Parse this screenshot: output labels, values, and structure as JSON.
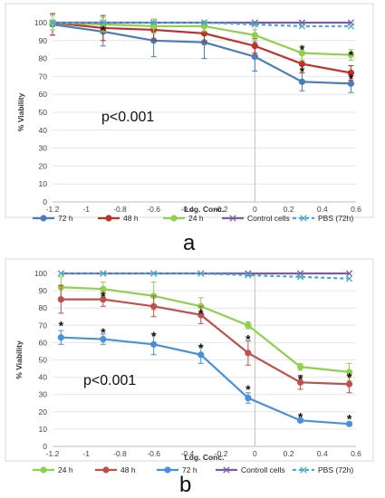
{
  "chart_data": [
    {
      "panel_label": "a",
      "type": "line",
      "xlabel": "Log. Conc.",
      "ylabel": "% Viability",
      "xlim": [
        -1.2,
        0.6
      ],
      "ylim": [
        0,
        100
      ],
      "xticks": [
        "-1.2",
        "-1",
        "-0.8",
        "-0.6",
        "-0.4",
        "-0.2",
        "0",
        "0.2",
        "0.4",
        "0.6"
      ],
      "yticks": [
        "0",
        "10",
        "20",
        "30",
        "40",
        "50",
        "60",
        "70",
        "80",
        "90",
        "100"
      ],
      "annotation": "p<0.001",
      "x": [
        -1.2,
        -0.9,
        -0.6,
        -0.3,
        0,
        0.28,
        0.57
      ],
      "series": [
        {
          "name": "72 h",
          "color": "#4a7ebb",
          "values": [
            99,
            95,
            90,
            89,
            81,
            67,
            66
          ],
          "errors": [
            6,
            8,
            9,
            9,
            8,
            5,
            5
          ],
          "dashed": false
        },
        {
          "name": "48 h",
          "color": "#c0302a",
          "values": [
            100,
            97,
            96,
            94,
            87,
            77,
            72
          ],
          "errors": [
            7,
            7,
            6,
            5,
            4,
            5,
            4
          ],
          "dashed": false
        },
        {
          "name": "24 h",
          "color": "#8fd14f",
          "values": [
            100,
            99,
            98,
            98,
            93,
            83,
            82
          ],
          "errors": [
            4,
            4,
            4,
            3,
            3,
            4,
            3
          ],
          "dashed": false
        },
        {
          "name": "Control cells",
          "color": "#7b5aa6",
          "values": [
            100,
            100,
            100,
            100,
            100,
            100,
            100
          ],
          "errors": null,
          "dashed": false
        },
        {
          "name": "PBS (72h)",
          "color": "#4bacc6",
          "values": [
            100,
            100,
            100,
            100,
            99,
            98,
            98
          ],
          "errors": null,
          "dashed": true
        }
      ],
      "stars": [
        {
          "x": -0.9,
          "y": 96
        },
        {
          "x": 0.28,
          "y": 85
        },
        {
          "x": 0.57,
          "y": 82
        },
        {
          "x": 0.28,
          "y": 73
        },
        {
          "x": 0.57,
          "y": 69
        }
      ]
    },
    {
      "panel_label": "b",
      "type": "line",
      "xlabel": "Log. Conc.",
      "ylabel": "% Viability",
      "xlim": [
        -1.2,
        0.6
      ],
      "ylim": [
        0,
        100
      ],
      "xticks": [
        "-1.2",
        "-1",
        "-0.8",
        "-0.6",
        "-0.4",
        "-0.2",
        "0",
        "0.2",
        "0.4",
        "0.6"
      ],
      "yticks": [
        "0",
        "10",
        "20",
        "30",
        "40",
        "50",
        "60",
        "70",
        "80",
        "90",
        "100"
      ],
      "annotation": "p<0.001",
      "x": [
        -1.15,
        -0.9,
        -0.6,
        -0.32,
        -0.04,
        0.27,
        0.56
      ],
      "series": [
        {
          "name": "24 h",
          "color": "#8fd14f",
          "values": [
            92,
            91,
            87,
            81,
            70,
            46,
            43
          ],
          "errors": [
            6,
            4,
            8,
            5,
            2,
            2,
            5
          ],
          "dashed": false
        },
        {
          "name": "48 h",
          "color": "#c0504d",
          "values": [
            85,
            85,
            81,
            76,
            54,
            37,
            36
          ],
          "errors": [
            8,
            4,
            6,
            5,
            7,
            4,
            5
          ],
          "dashed": false
        },
        {
          "name": "72 h",
          "color": "#4a90d9",
          "values": [
            63,
            62,
            59,
            53,
            28,
            15,
            13
          ],
          "errors": [
            4,
            3,
            6,
            5,
            3,
            1,
            1
          ],
          "dashed": false
        },
        {
          "name": "Controll cells",
          "color": "#7b5aa6",
          "values": [
            100,
            100,
            100,
            100,
            100,
            100,
            100
          ],
          "errors": null,
          "dashed": false
        },
        {
          "name": "PBS (72h)",
          "color": "#4bacc6",
          "values": [
            100,
            100,
            100,
            100,
            99,
            98,
            97
          ],
          "errors": null,
          "dashed": true
        }
      ],
      "stars": [
        {
          "x": -1.15,
          "y": 70
        },
        {
          "x": -0.9,
          "y": 87
        },
        {
          "x": -0.9,
          "y": 66
        },
        {
          "x": -0.6,
          "y": 64
        },
        {
          "x": -0.32,
          "y": 77
        },
        {
          "x": -0.32,
          "y": 57
        },
        {
          "x": -0.04,
          "y": 62
        },
        {
          "x": -0.04,
          "y": 33
        },
        {
          "x": 0.27,
          "y": 39
        },
        {
          "x": 0.27,
          "y": 17
        },
        {
          "x": 0.56,
          "y": 40
        },
        {
          "x": 0.56,
          "y": 16
        }
      ]
    }
  ]
}
